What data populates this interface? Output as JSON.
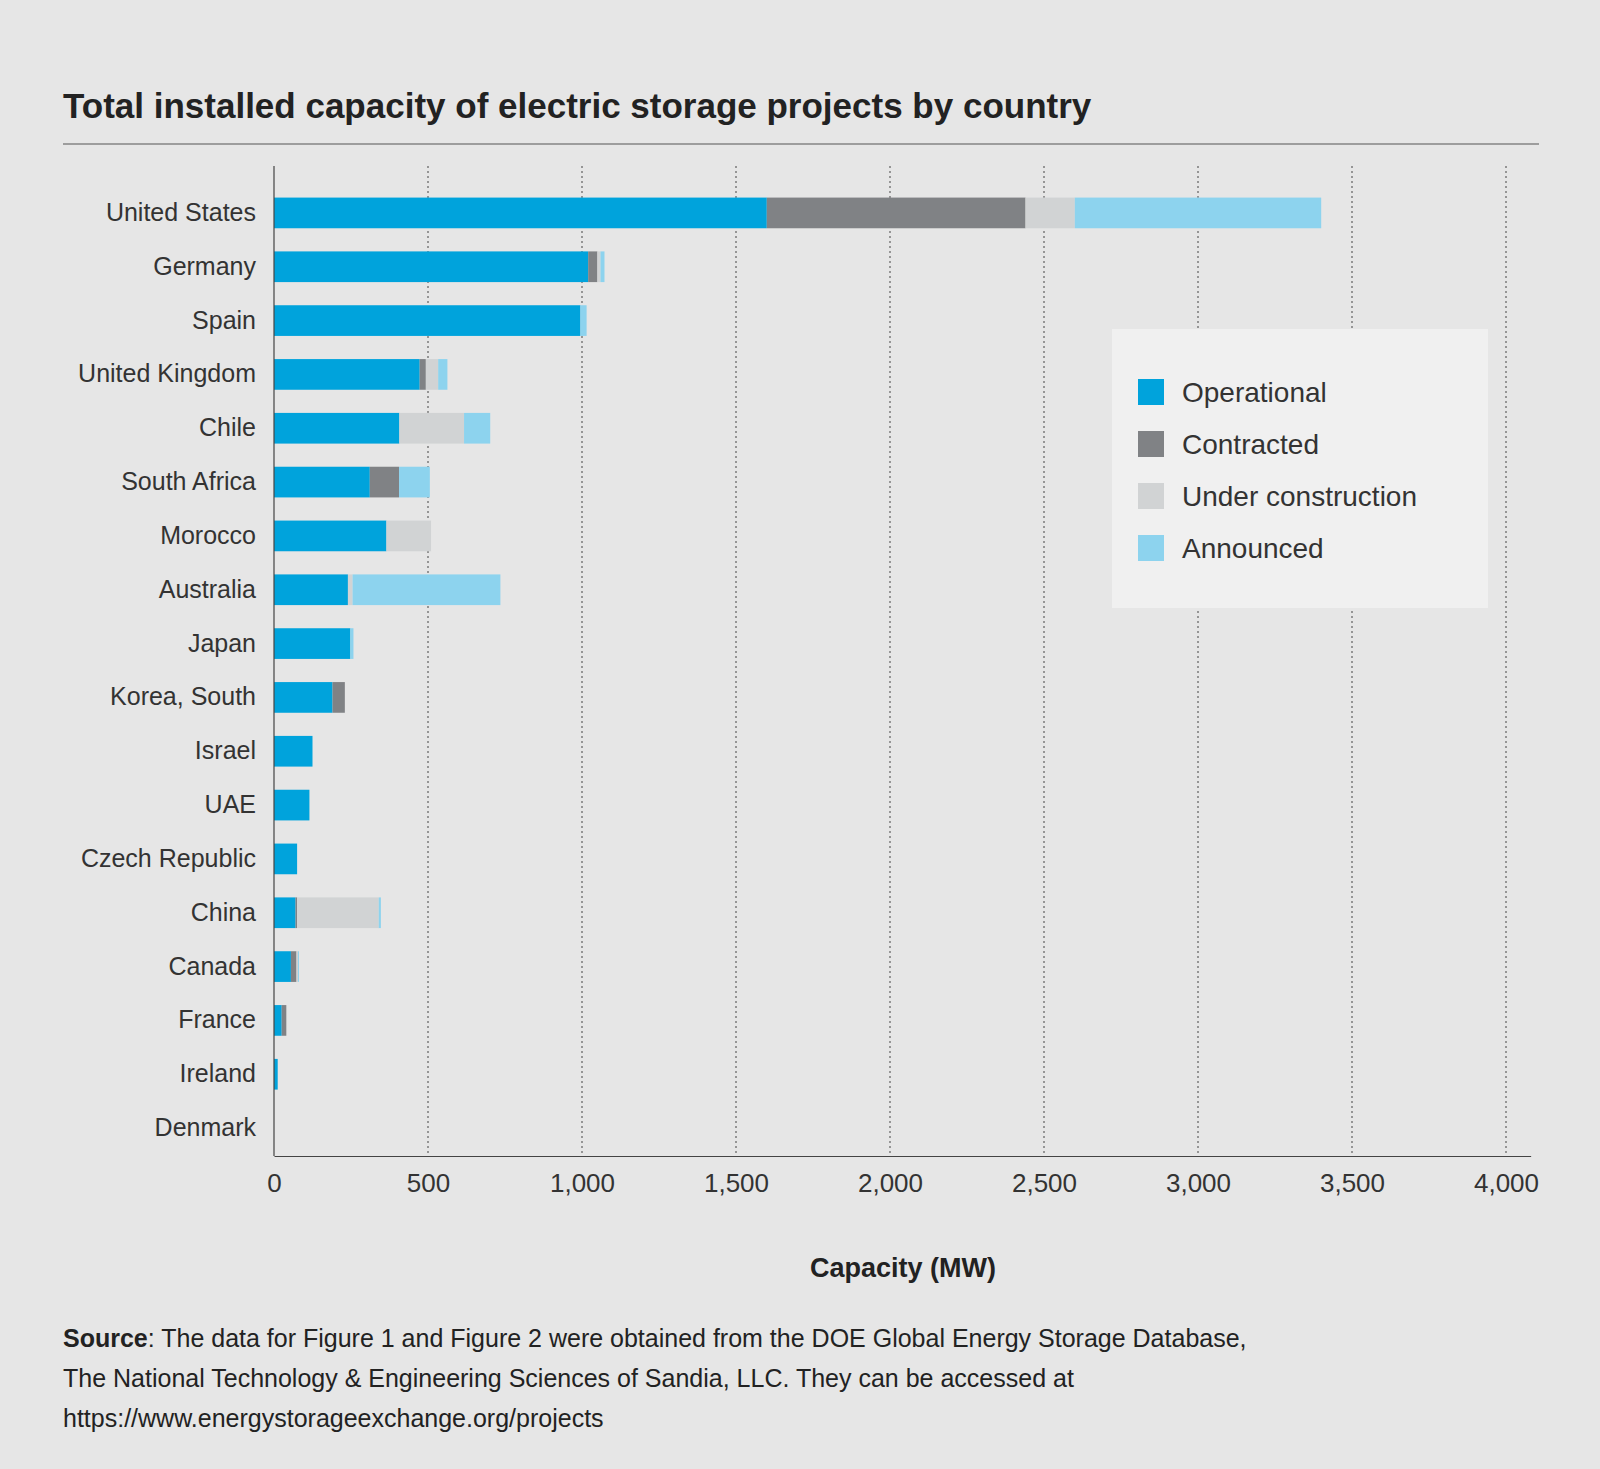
{
  "chart_data": {
    "type": "bar",
    "orientation": "horizontal",
    "stacked": true,
    "title": "Total installed capacity of electric storage projects by country",
    "x_label": "Capacity (MW)",
    "categories": [
      "United States",
      "Germany",
      "Spain",
      "United Kingdom",
      "Chile",
      "South Africa",
      "Morocco",
      "Australia",
      "Japan",
      "Korea, South",
      "Israel",
      "UAE",
      "Czech Republic",
      "China",
      "Canada",
      "France",
      "Ireland",
      "Denmark"
    ],
    "series": [
      {
        "name": "Operational",
        "color": "#00a3dc",
        "values": [
          1600,
          1020,
          995,
          473,
          407,
          311,
          365,
          240,
          248,
          190,
          125,
          115,
          75,
          70,
          55,
          25,
          12,
          0
        ]
      },
      {
        "name": "Contracted",
        "color": "#808285",
        "values": [
          840,
          30,
          0,
          20,
          0,
          95,
          0,
          0,
          0,
          40,
          0,
          0,
          0,
          5,
          18,
          15,
          0,
          0
        ]
      },
      {
        "name": "Under construction",
        "color": "#d1d3d4",
        "values": [
          160,
          10,
          0,
          40,
          210,
          0,
          145,
          15,
          0,
          0,
          0,
          0,
          0,
          265,
          5,
          0,
          0,
          0
        ]
      },
      {
        "name": "Announced",
        "color": "#8dd3ee",
        "values": [
          800,
          13,
          20,
          30,
          85,
          100,
          0,
          480,
          10,
          0,
          0,
          0,
          0,
          7,
          3,
          0,
          0,
          0
        ]
      }
    ],
    "xlim": [
      0,
      4080
    ],
    "xticks": [
      0,
      500,
      {
        "value": 1000,
        "label": "1,000"
      },
      {
        "value": 1500,
        "label": "1,500"
      },
      {
        "value": 2000,
        "label": "2,000"
      },
      {
        "value": 2500,
        "label": "2,500"
      },
      {
        "value": 3000,
        "label": "3,000"
      },
      {
        "value": 3500,
        "label": "3,500"
      },
      {
        "value": 4000,
        "label": "4,000"
      }
    ],
    "grid": true,
    "legend": "top-right",
    "source": {
      "label": "Source",
      "lines": [
        ": The data for Figure 1 and Figure 2 were obtained from the DOE Global Energy Storage Database,",
        "The National Technology & Engineering Sciences of Sandia, LLC. They can be accessed at",
        "https://www.energystorageexchange.org/projects"
      ]
    }
  }
}
